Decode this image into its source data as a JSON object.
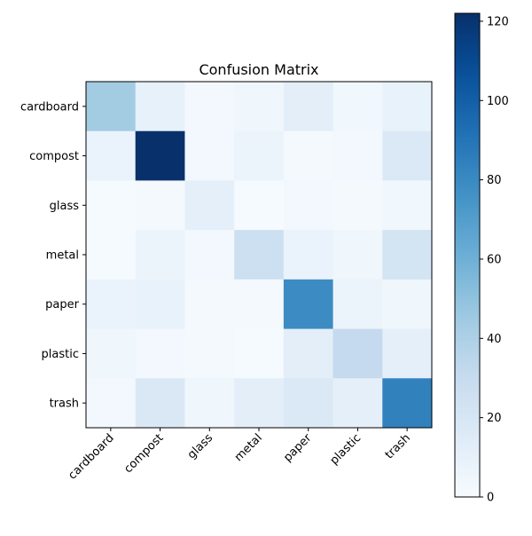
{
  "chart_data": {
    "type": "heatmap",
    "title": "Confusion Matrix",
    "xlabel": "",
    "ylabel": "",
    "x_categories": [
      "cardboard",
      "compost",
      "glass",
      "metal",
      "paper",
      "plastic",
      "trash"
    ],
    "y_categories": [
      "cardboard",
      "compost",
      "glass",
      "metal",
      "paper",
      "plastic",
      "trash"
    ],
    "values": [
      [
        44,
        10,
        3,
        5,
        12,
        4,
        9
      ],
      [
        8,
        122,
        3,
        7,
        2,
        3,
        17
      ],
      [
        1,
        2,
        11,
        1,
        3,
        2,
        4
      ],
      [
        1,
        7,
        3,
        26,
        8,
        5,
        22
      ],
      [
        8,
        9,
        2,
        2,
        79,
        7,
        5
      ],
      [
        5,
        3,
        2,
        1,
        12,
        31,
        11
      ],
      [
        3,
        18,
        5,
        12,
        17,
        11,
        84
      ]
    ],
    "colorbar": {
      "min": 0,
      "max": 122,
      "ticks": [
        "0",
        "20",
        "40",
        "60",
        "80",
        "100",
        "120"
      ],
      "colormap": "Blues"
    },
    "grid": false,
    "legend": "none"
  }
}
